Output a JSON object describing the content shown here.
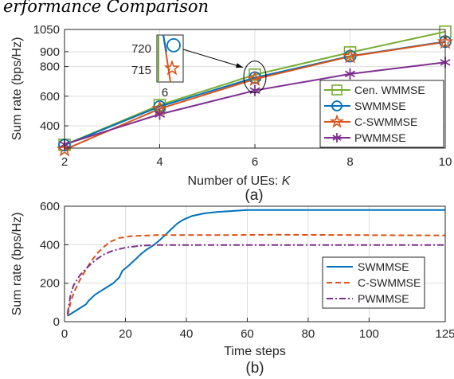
{
  "header_text": "erformance Comparison",
  "chart_data": [
    {
      "type": "line",
      "panel_label": "(a)",
      "xlabel": "Number of UEs: ",
      "xlabel_var": "K",
      "ylabel": "Sum rate (bps/Hz)",
      "xlim": [
        2,
        10
      ],
      "ylim": [
        250,
        1050
      ],
      "xticks": [
        2,
        4,
        6,
        8,
        10
      ],
      "yticks": [
        400,
        600,
        800,
        900,
        1050
      ],
      "grid": true,
      "legend_position": "bottom-right",
      "x": [
        2,
        4,
        6,
        8,
        10
      ],
      "series": [
        {
          "name": "Cen. WMMSE",
          "color": "#77AC30",
          "marker": "square",
          "values": [
            272,
            540,
            745,
            895,
            1035
          ]
        },
        {
          "name": "SWMMSE",
          "color": "#0072BD",
          "marker": "circle",
          "values": [
            270,
            530,
            725,
            870,
            968
          ]
        },
        {
          "name": "C-SWMMSE",
          "color": "#D95319",
          "marker": "star",
          "values": [
            240,
            515,
            715,
            868,
            965
          ]
        },
        {
          "name": "PWMMSE",
          "color": "#7E2F8E",
          "marker": "asterisk",
          "values": [
            275,
            478,
            638,
            750,
            828
          ]
        }
      ],
      "inset": {
        "x_tick": "6",
        "y_ticks": [
          720,
          715
        ],
        "xlim": [
          5.999,
          6.001
        ],
        "ylim": [
          712,
          723
        ]
      }
    },
    {
      "type": "line",
      "panel_label": "(b)",
      "xlabel": "Time steps",
      "ylabel": "Sum rate (bps/Hz)",
      "xlim": [
        0,
        125
      ],
      "ylim": [
        0,
        600
      ],
      "xticks": [
        0,
        20,
        40,
        60,
        80,
        100,
        125
      ],
      "yticks": [
        0,
        200,
        400,
        600
      ],
      "grid": true,
      "legend_position": "right",
      "series": [
        {
          "name": "SWMMSE",
          "color": "#0072BD",
          "dash": "solid",
          "x": [
            1,
            3,
            5,
            7,
            8,
            10,
            12,
            14,
            16,
            18,
            19,
            21,
            23,
            25,
            27,
            29,
            31,
            33,
            35,
            37,
            39,
            42,
            46,
            50,
            55,
            60,
            70,
            80,
            100,
            125
          ],
          "values": [
            30,
            50,
            70,
            90,
            110,
            140,
            160,
            180,
            200,
            230,
            265,
            290,
            320,
            350,
            375,
            395,
            420,
            450,
            480,
            510,
            530,
            550,
            563,
            570,
            575,
            580,
            580,
            580,
            580,
            580
          ]
        },
        {
          "name": "C-SWMMSE",
          "color": "#D95319",
          "dash": "dashed",
          "x": [
            1,
            2,
            3,
            5,
            7,
            9,
            11,
            13,
            15,
            18,
            22,
            30,
            50,
            70,
            100,
            125
          ],
          "values": [
            30,
            100,
            150,
            215,
            270,
            320,
            360,
            390,
            415,
            435,
            445,
            450,
            450,
            452,
            450,
            448
          ]
        },
        {
          "name": "PWMMSE",
          "color": "#7E2F8E",
          "dash": "dashdot",
          "x": [
            1,
            2,
            3,
            5,
            7,
            9,
            11,
            13,
            16,
            20,
            25,
            30,
            50,
            80,
            100,
            125
          ],
          "values": [
            40,
            140,
            190,
            240,
            275,
            305,
            330,
            350,
            370,
            385,
            395,
            398,
            398,
            398,
            398,
            398
          ]
        }
      ]
    }
  ]
}
